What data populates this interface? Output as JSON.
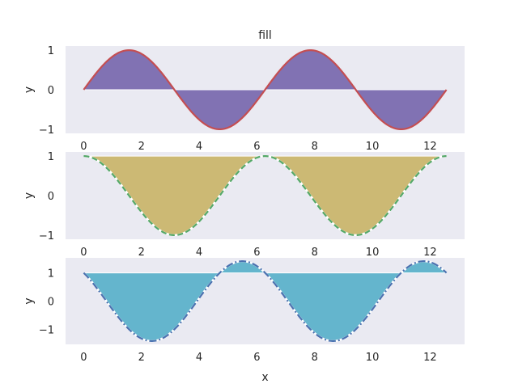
{
  "chart_data": [
    {
      "type": "area",
      "title": "fill",
      "xlabel": "",
      "ylabel": "y",
      "function": "sin(x)",
      "fill_baseline": 0,
      "xlim": [
        0,
        12.566
      ],
      "ylim": [
        -1,
        1
      ],
      "xticks": [
        0,
        2,
        4,
        6,
        8,
        10,
        12
      ],
      "yticks": [
        1,
        0,
        -1
      ],
      "ytick_labels": [
        "1",
        "0",
        "−1"
      ],
      "line_color": "#c44e52",
      "line_style": "solid",
      "fill_color": "#8172b3",
      "grid": false
    },
    {
      "type": "area",
      "title": "",
      "xlabel": "",
      "ylabel": "y",
      "function": "cos(x)",
      "fill_baseline": 1,
      "xlim": [
        0,
        12.566
      ],
      "ylim": [
        -1,
        1
      ],
      "xticks": [
        0,
        2,
        4,
        6,
        8,
        10,
        12
      ],
      "yticks": [
        1,
        0,
        -1
      ],
      "ytick_labels": [
        "1",
        "0",
        "−1"
      ],
      "line_color": "#55a868",
      "line_style": "dashed",
      "fill_color": "#ccb974",
      "grid": false
    },
    {
      "type": "area",
      "title": "",
      "xlabel": "x",
      "ylabel": "y",
      "function": "cos(x) - sin(x)",
      "fill_baseline": 1,
      "xlim": [
        0,
        12.566
      ],
      "ylim": [
        -1.414,
        1.414
      ],
      "xticks": [
        0,
        2,
        4,
        6,
        8,
        10,
        12
      ],
      "yticks": [
        1,
        0,
        -1
      ],
      "ytick_labels": [
        "1",
        "0",
        "−1"
      ],
      "line_color": "#4c72b0",
      "line_style": "dashdot",
      "fill_color": "#64b5cd",
      "grid": false
    }
  ],
  "colors": {
    "axes_background": "#eaeaf2",
    "page_background": "#ffffff",
    "text": "#262626"
  }
}
